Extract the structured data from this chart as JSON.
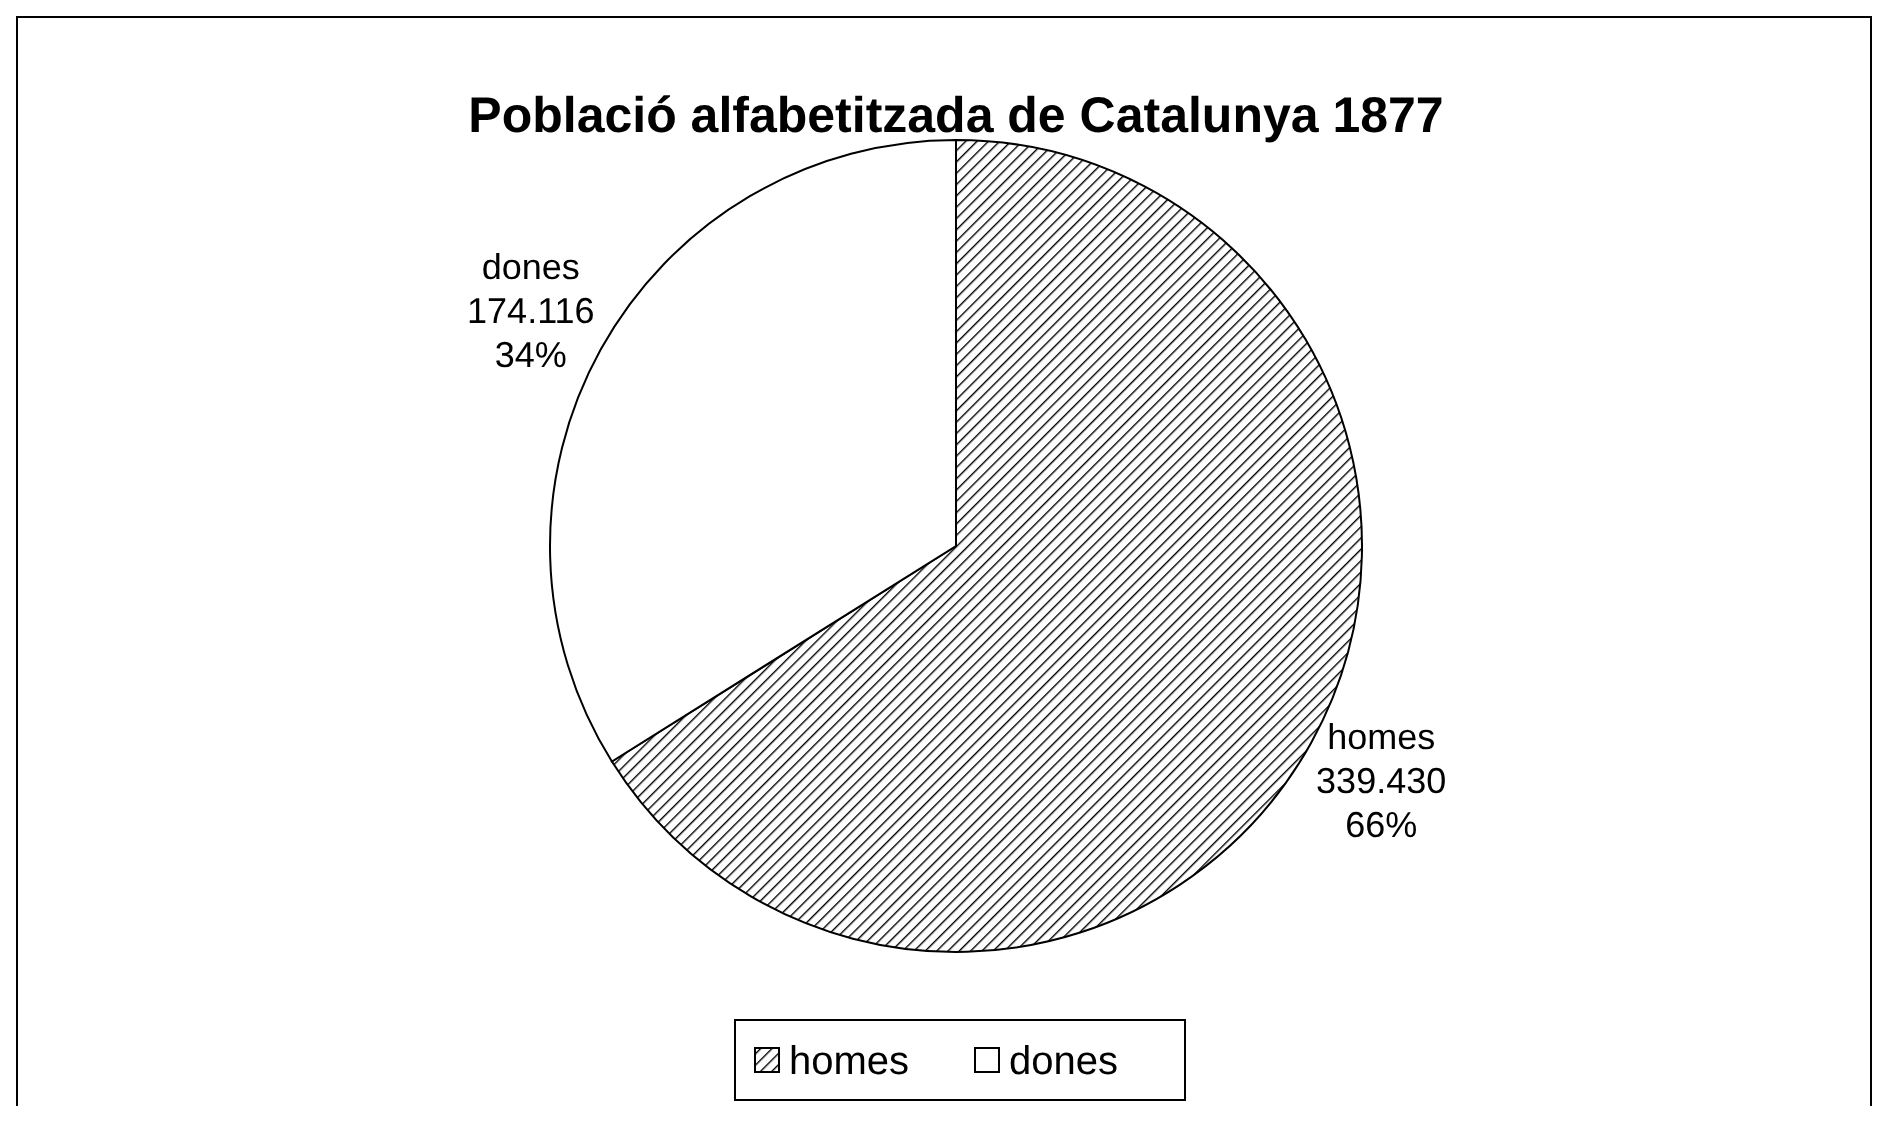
{
  "chart_data": {
    "type": "pie",
    "title": "Població alfabetitzada de Catalunya 1877",
    "categories": [
      "homes",
      "dones"
    ],
    "values": [
      339430,
      174116
    ],
    "colors": [
      "#000000",
      "#ffffff"
    ],
    "value_labels": [
      "339.430\n66%",
      "174.116\n34%"
    ],
    "legend": "bottom"
  }
}
